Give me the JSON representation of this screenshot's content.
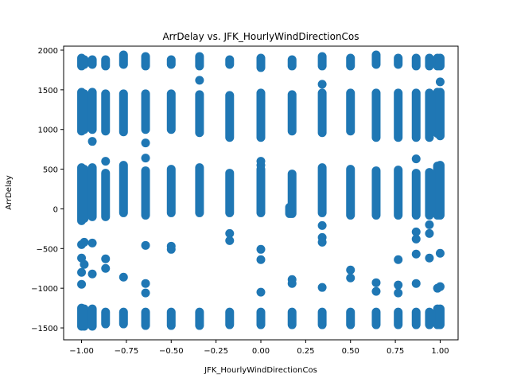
{
  "chart_data": {
    "type": "scatter",
    "title": "ArrDelay vs. JFK_HourlyWindDirectionCos",
    "xlabel": "JFK_HourlyWindDirectionCos",
    "ylabel": "ArrDelay",
    "xlim": [
      -1.1,
      1.1
    ],
    "ylim": [
      -1650,
      2050
    ],
    "xticks": [
      -1.0,
      -0.75,
      -0.5,
      -0.25,
      0.0,
      0.25,
      0.5,
      0.75,
      1.0
    ],
    "xtick_labels": [
      "−1.00",
      "−0.75",
      "−0.50",
      "−0.25",
      "0.00",
      "0.25",
      "0.50",
      "0.75",
      "1.00"
    ],
    "yticks": [
      -1500,
      -1000,
      -500,
      0,
      500,
      1000,
      1500,
      2000
    ],
    "ytick_labels": [
      "−1500",
      "−1000",
      "−500",
      "0",
      "500",
      "1000",
      "1500",
      "2000"
    ],
    "grid": false,
    "marker_color": "#1f77b4",
    "columns": [
      {
        "x": -1.0,
        "segments": [
          [
            -1480,
            -1250
          ],
          [
            -150,
            520
          ],
          [
            980,
            1470
          ],
          [
            1800,
            1900
          ]
        ],
        "points": [
          -450,
          -800,
          -950,
          -620
        ]
      },
      {
        "x": -0.985,
        "segments": [
          [
            -1480,
            -1260
          ],
          [
            -120,
            500
          ],
          [
            1000,
            1450
          ],
          [
            1820,
            1880
          ]
        ],
        "points": [
          -420,
          -700
        ]
      },
      {
        "x": -0.94,
        "segments": [
          [
            -1480,
            -1260
          ],
          [
            -100,
            520
          ],
          [
            1000,
            1470
          ],
          [
            1820,
            1880
          ]
        ],
        "points": [
          -430,
          -820,
          850
        ]
      },
      {
        "x": -0.866,
        "segments": [
          [
            -1450,
            -1300
          ],
          [
            -100,
            450
          ],
          [
            980,
            1450
          ],
          [
            1800,
            1880
          ]
        ],
        "points": [
          600,
          -630,
          -750
        ]
      },
      {
        "x": -0.766,
        "segments": [
          [
            -1450,
            -1300
          ],
          [
            -50,
            550
          ],
          [
            970,
            1450
          ],
          [
            1820,
            1940
          ]
        ],
        "points": [
          -860
        ]
      },
      {
        "x": -0.643,
        "segments": [
          [
            -1470,
            -1300
          ],
          [
            -80,
            480
          ],
          [
            1000,
            1450
          ],
          [
            1800,
            1920
          ]
        ],
        "points": [
          830,
          640,
          -460,
          -940,
          -1060
        ]
      },
      {
        "x": -0.5,
        "segments": [
          [
            -1470,
            -1300
          ],
          [
            -50,
            500
          ],
          [
            1000,
            1450
          ],
          [
            1820,
            1880
          ]
        ],
        "points": [
          -470,
          -510
        ]
      },
      {
        "x": -0.342,
        "segments": [
          [
            -1470,
            -1300
          ],
          [
            -50,
            520
          ],
          [
            960,
            1440
          ],
          [
            1800,
            1920
          ]
        ],
        "points": [
          1620
        ]
      },
      {
        "x": -0.174,
        "segments": [
          [
            -1460,
            -1300
          ],
          [
            -50,
            450
          ],
          [
            900,
            1430
          ],
          [
            1820,
            1880
          ]
        ],
        "points": [
          -310,
          -400
        ]
      },
      {
        "x": 0.0,
        "segments": [
          [
            -1460,
            -1300
          ],
          [
            -50,
            500
          ],
          [
            900,
            1460
          ],
          [
            1780,
            1900
          ]
        ],
        "points": [
          550,
          600,
          -510,
          -640,
          -1050
        ]
      },
      {
        "x": 0.16,
        "segments": [
          [
            -60,
            20
          ]
        ],
        "points": []
      },
      {
        "x": 0.174,
        "segments": [
          [
            -1460,
            -1300
          ],
          [
            -60,
            440
          ],
          [
            980,
            1440
          ],
          [
            1800,
            1880
          ]
        ],
        "points": [
          -890,
          -940
        ]
      },
      {
        "x": 0.342,
        "segments": [
          [
            -1460,
            -1300
          ],
          [
            -50,
            520
          ],
          [
            960,
            1460
          ],
          [
            1800,
            1920
          ]
        ],
        "points": [
          -210,
          -360,
          -420,
          -990,
          1570
        ]
      },
      {
        "x": 0.5,
        "segments": [
          [
            -1460,
            -1300
          ],
          [
            -80,
            500
          ],
          [
            980,
            1460
          ],
          [
            1800,
            1900
          ]
        ],
        "points": [
          -770,
          -870
        ]
      },
      {
        "x": 0.643,
        "segments": [
          [
            -1460,
            -1300
          ],
          [
            -80,
            480
          ],
          [
            900,
            1460
          ],
          [
            1820,
            1940
          ]
        ],
        "points": [
          -930,
          -1040
        ]
      },
      {
        "x": 0.766,
        "segments": [
          [
            -1460,
            -1300
          ],
          [
            -80,
            490
          ],
          [
            900,
            1460
          ],
          [
            1820,
            1900
          ]
        ],
        "points": [
          -640,
          -960,
          -1060
        ]
      },
      {
        "x": 0.866,
        "segments": [
          [
            -1460,
            -1300
          ],
          [
            -80,
            450
          ],
          [
            900,
            1460
          ],
          [
            1800,
            1900
          ]
        ],
        "points": [
          -290,
          -380,
          630,
          -570,
          -940
        ]
      },
      {
        "x": 0.94,
        "segments": [
          [
            -1460,
            -1300
          ],
          [
            -80,
            460
          ],
          [
            900,
            1460
          ],
          [
            1800,
            1900
          ]
        ],
        "points": [
          -200,
          -310,
          -620
        ]
      },
      {
        "x": 0.985,
        "segments": [
          [
            -1460,
            -1260
          ],
          [
            -80,
            540
          ],
          [
            950,
            1470
          ],
          [
            1800,
            1900
          ]
        ],
        "points": [
          -1000
        ]
      },
      {
        "x": 1.0,
        "segments": [
          [
            -1460,
            -1260
          ],
          [
            -80,
            550
          ],
          [
            920,
            1470
          ],
          [
            1800,
            1900
          ]
        ],
        "points": [
          -560,
          -980,
          1600
        ]
      }
    ]
  }
}
